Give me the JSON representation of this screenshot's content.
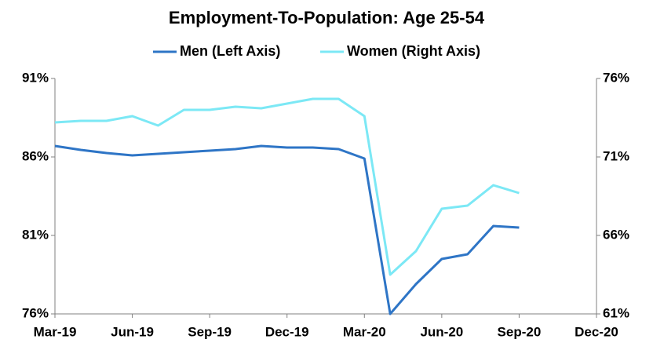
{
  "chart_data": {
    "type": "line",
    "title": "Employment-To-Population: Age 25-54",
    "categories": [
      "Mar-19",
      null,
      null,
      "Jun-19",
      null,
      null,
      "Sep-19",
      null,
      null,
      "Dec-19",
      null,
      null,
      "Mar-20",
      null,
      null,
      "Jun-20",
      null,
      null,
      "Sep-20",
      null,
      null,
      "Dec-20"
    ],
    "series": [
      {
        "name": "Men (Left Axis)",
        "color": "#2e75c6",
        "values": [
          86.7,
          86.45,
          86.25,
          86.1,
          86.2,
          86.3,
          86.4,
          86.5,
          86.7,
          86.6,
          86.6,
          86.5,
          85.9,
          76.0,
          77.9,
          79.5,
          79.8,
          81.6,
          81.5,
          null,
          null,
          null
        ]
      },
      {
        "name": "Women (Right Axis)",
        "color": "#7ce8f5",
        "axis": "y2",
        "values": [
          73.2,
          73.3,
          73.3,
          73.6,
          73.0,
          74.0,
          74.0,
          74.2,
          74.1,
          74.4,
          74.7,
          74.7,
          73.6,
          63.5,
          65.0,
          67.7,
          67.9,
          69.2,
          68.7,
          null,
          null,
          null
        ]
      }
    ],
    "ylim": [
      76,
      91
    ],
    "yticks": [
      {
        "value": 76,
        "label": "76%"
      },
      {
        "value": 81,
        "label": "81%"
      },
      {
        "value": 86,
        "label": "86%"
      },
      {
        "value": 91,
        "label": "91%"
      }
    ],
    "y2lim": [
      61,
      76
    ],
    "y2ticks": [
      {
        "value": 61,
        "label": "61%"
      },
      {
        "value": 66,
        "label": "66%"
      },
      {
        "value": 71,
        "label": "71%"
      },
      {
        "value": 76,
        "label": "76%"
      }
    ],
    "legend": "top",
    "grid": false
  }
}
